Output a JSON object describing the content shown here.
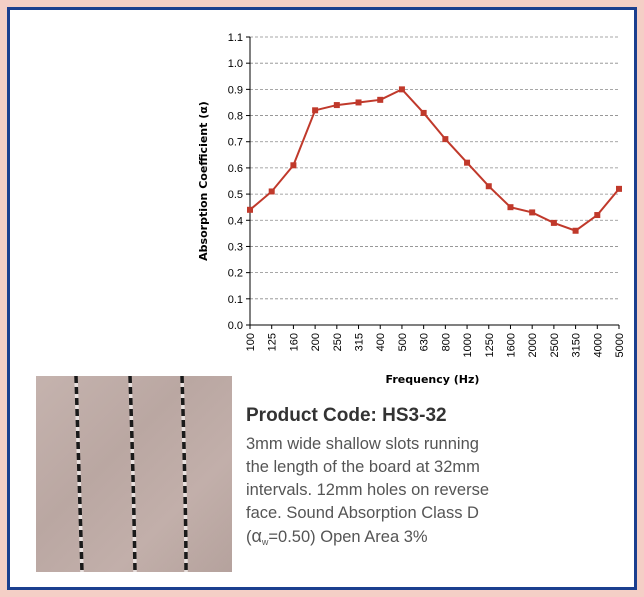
{
  "chart_data": {
    "type": "line",
    "title": "",
    "xlabel": "Frequency (Hz)",
    "ylabel": "Absorption Coefficient  (α)",
    "categories": [
      "100",
      "125",
      "160",
      "200",
      "250",
      "315",
      "400",
      "500",
      "630",
      "800",
      "1000",
      "1250",
      "1600",
      "2000",
      "2500",
      "3150",
      "4000",
      "5000"
    ],
    "series": [
      {
        "values": [
          0.44,
          0.51,
          0.61,
          0.82,
          0.84,
          0.85,
          0.86,
          0.9,
          0.81,
          0.71,
          0.62,
          0.53,
          0.45,
          0.43,
          0.39,
          0.36,
          0.42,
          0.52
        ]
      }
    ],
    "ylim": [
      0,
      1.1
    ],
    "yticks": [
      "0.0",
      "0.1",
      "0.2",
      "0.3",
      "0.4",
      "0.5",
      "0.6",
      "0.7",
      "0.8",
      "0.9",
      "1.0",
      "1.1"
    ],
    "grid": true,
    "series_color": "#c0392b",
    "marker": "square"
  },
  "product": {
    "code": "Product Code: HS3-32",
    "description_lines": [
      "3mm wide shallow slots running",
      "the length of the board at 32mm",
      "intervals. 12mm holes on reverse",
      "face. Sound Absorption Class D"
    ],
    "alpha_symbol": "α",
    "alpha_subscript": "w",
    "alpha_value": "=0.50) Open Area 3%",
    "alpha_open": "("
  },
  "photo": {
    "icon": "slotted-board-sample-photo"
  }
}
